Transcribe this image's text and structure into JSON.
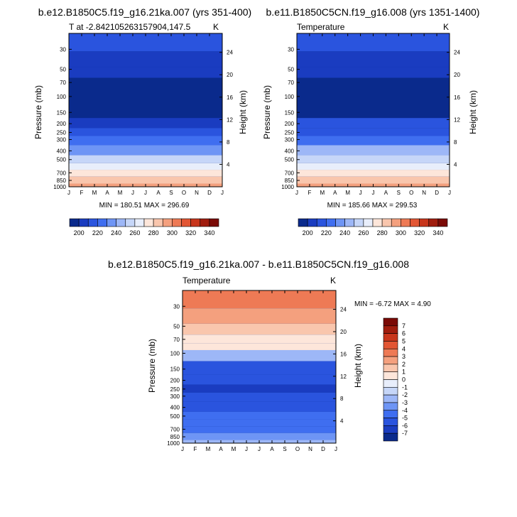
{
  "chart_data": [
    {
      "type": "heatmap",
      "panel": "top-left",
      "title": "b.e12.B1850C5.f19_g16.21ka.007 (yrs 351-400)",
      "subtitle_left": "T at -2.842105263157904,147.5",
      "subtitle_right": "K",
      "ylabel": "Pressure (mb)",
      "ylabel_right": "Height (km)",
      "x_categories": [
        "J",
        "F",
        "M",
        "A",
        "M",
        "J",
        "J",
        "A",
        "S",
        "O",
        "N",
        "D",
        "J"
      ],
      "y_ticks": [
        30,
        50,
        70,
        100,
        150,
        200,
        250,
        300,
        400,
        500,
        700,
        850,
        1000
      ],
      "y_right_ticks": [
        24,
        20,
        16,
        12,
        8,
        4
      ],
      "ylim": [
        1000,
        20
      ],
      "y_scale": "log",
      "stats": "MIN = 180.51 MAX = 296.69",
      "colorbar": {
        "orientation": "horizontal",
        "labels": [
          "200",
          "220",
          "240",
          "260",
          "280",
          "300",
          "320",
          "340"
        ],
        "colors": [
          "#0a2a8c",
          "#1a3cc0",
          "#2a54de",
          "#3f6ef0",
          "#6e95f5",
          "#9db7f7",
          "#c6d6f8",
          "#e8eefb",
          "#fde6da",
          "#f9c6ad",
          "#f4a07e",
          "#ee7a55",
          "#e25634",
          "#c8361c",
          "#a01d0e",
          "#7a0a06"
        ]
      },
      "levels": [
        {
          "p": 25,
          "value": 212
        },
        {
          "p": 40,
          "value": 205
        },
        {
          "p": 55,
          "value": 202
        },
        {
          "p": 70,
          "value": 196
        },
        {
          "p": 100,
          "value": 193
        },
        {
          "p": 150,
          "value": 196
        },
        {
          "p": 200,
          "value": 205
        },
        {
          "p": 250,
          "value": 213
        },
        {
          "p": 300,
          "value": 222
        },
        {
          "p": 400,
          "value": 238
        },
        {
          "p": 500,
          "value": 252
        },
        {
          "p": 600,
          "value": 264
        },
        {
          "p": 700,
          "value": 274
        },
        {
          "p": 850,
          "value": 286
        },
        {
          "p": 1000,
          "value": 294
        }
      ]
    },
    {
      "type": "heatmap",
      "panel": "top-right",
      "title": "b.e11.B1850C5CN.f19_g16.008 (yrs 1351-1400)",
      "subtitle_left": "Temperature",
      "subtitle_right": "K",
      "ylabel": "Pressure (mb)",
      "ylabel_right": "Height (km)",
      "x_categories": [
        "J",
        "F",
        "M",
        "A",
        "M",
        "J",
        "J",
        "A",
        "S",
        "O",
        "N",
        "D",
        "J"
      ],
      "y_ticks": [
        30,
        50,
        70,
        100,
        150,
        200,
        250,
        300,
        400,
        500,
        700,
        850,
        1000
      ],
      "y_right_ticks": [
        24,
        20,
        16,
        12,
        8,
        4
      ],
      "ylim": [
        1000,
        20
      ],
      "y_scale": "log",
      "stats": "MIN = 185.66 MAX = 299.53",
      "colorbar": {
        "orientation": "horizontal",
        "labels": [
          "200",
          "220",
          "240",
          "260",
          "280",
          "300",
          "320",
          "340"
        ],
        "colors": [
          "#0a2a8c",
          "#1a3cc0",
          "#2a54de",
          "#3f6ef0",
          "#6e95f5",
          "#9db7f7",
          "#c6d6f8",
          "#e8eefb",
          "#fde6da",
          "#f9c6ad",
          "#f4a07e",
          "#ee7a55",
          "#e25634",
          "#c8361c",
          "#a01d0e",
          "#7a0a06"
        ]
      },
      "levels": [
        {
          "p": 25,
          "value": 213
        },
        {
          "p": 40,
          "value": 207
        },
        {
          "p": 55,
          "value": 203
        },
        {
          "p": 70,
          "value": 197
        },
        {
          "p": 100,
          "value": 192
        },
        {
          "p": 150,
          "value": 199
        },
        {
          "p": 200,
          "value": 210
        },
        {
          "p": 250,
          "value": 219
        },
        {
          "p": 300,
          "value": 228
        },
        {
          "p": 400,
          "value": 244
        },
        {
          "p": 500,
          "value": 257
        },
        {
          "p": 600,
          "value": 268
        },
        {
          "p": 700,
          "value": 278
        },
        {
          "p": 850,
          "value": 289
        },
        {
          "p": 1000,
          "value": 297
        }
      ]
    },
    {
      "type": "heatmap",
      "panel": "bottom",
      "title": "b.e12.B1850C5.f19_g16.21ka.007 - b.e11.B1850C5CN.f19_g16.008",
      "subtitle_left": "Temperature",
      "subtitle_right": "K",
      "ylabel": "Pressure (mb)",
      "ylabel_right": "Height (km)",
      "x_categories": [
        "J",
        "F",
        "M",
        "A",
        "M",
        "J",
        "J",
        "A",
        "S",
        "O",
        "N",
        "D",
        "J"
      ],
      "y_ticks": [
        30,
        50,
        70,
        100,
        150,
        200,
        250,
        300,
        400,
        500,
        700,
        850,
        1000
      ],
      "y_right_ticks": [
        24,
        20,
        16,
        12,
        8,
        4
      ],
      "ylim": [
        1000,
        20
      ],
      "y_scale": "log",
      "stats": "MIN =  -6.72 MAX =   4.90",
      "colorbar": {
        "orientation": "vertical",
        "labels": [
          "7",
          "6",
          "5",
          "4",
          "3",
          "2",
          "1",
          "0",
          "-1",
          "-2",
          "-3",
          "-4",
          "-5",
          "-6",
          "-7"
        ],
        "colors": [
          "#7a0a06",
          "#a01d0e",
          "#c8361c",
          "#e25634",
          "#ee7a55",
          "#f4a07e",
          "#f9c6ad",
          "#fde6da",
          "#e8eefb",
          "#c6d6f8",
          "#9db7f7",
          "#6e95f5",
          "#3f6ef0",
          "#2a54de",
          "#1a3cc0",
          "#0a2a8c"
        ]
      },
      "levels": [
        {
          "p": 25,
          "value": 3.5
        },
        {
          "p": 40,
          "value": 2.5
        },
        {
          "p": 55,
          "value": 1.5
        },
        {
          "p": 70,
          "value": 0.8
        },
        {
          "p": 85,
          "value": 0.2
        },
        {
          "p": 100,
          "value": -3
        },
        {
          "p": 150,
          "value": -5.5
        },
        {
          "p": 200,
          "value": -6.0
        },
        {
          "p": 250,
          "value": -6.1
        },
        {
          "p": 300,
          "value": -6.0
        },
        {
          "p": 400,
          "value": -5.3
        },
        {
          "p": 500,
          "value": -4.8
        },
        {
          "p": 600,
          "value": -4.5
        },
        {
          "p": 700,
          "value": -4.2
        },
        {
          "p": 850,
          "value": -3.6
        },
        {
          "p": 1000,
          "value": -2.5
        }
      ]
    }
  ]
}
